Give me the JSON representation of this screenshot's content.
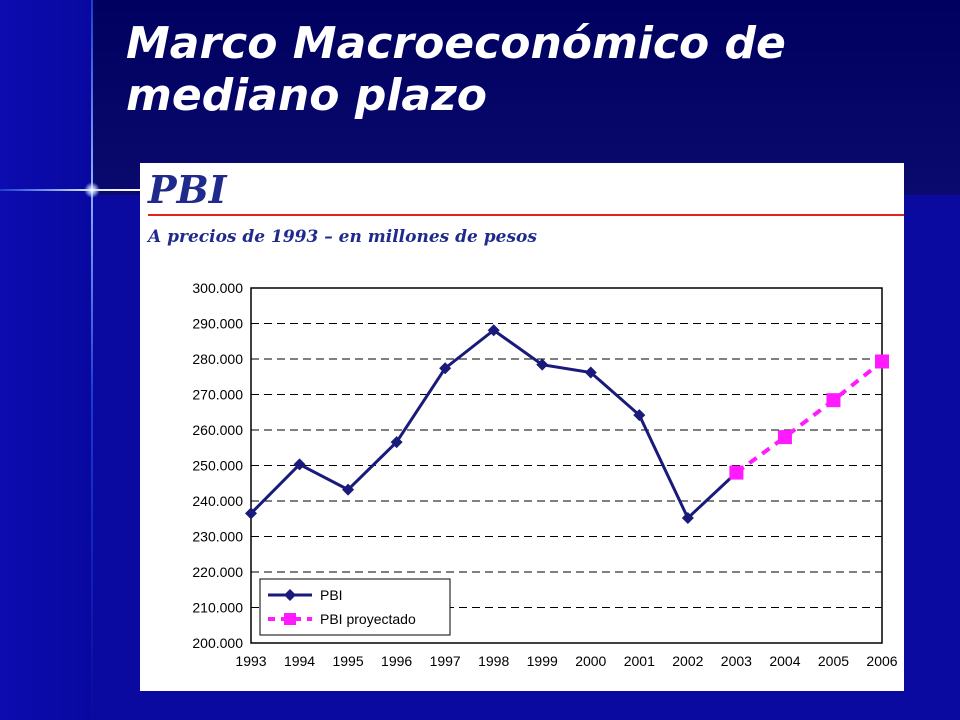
{
  "slide": {
    "title_line1": "Marco Macroeconómico de",
    "title_line2": "mediano plazo"
  },
  "chart_data": {
    "type": "line",
    "title": "PBI",
    "subtitle": "A precios de 1993 – en millones de pesos",
    "categories": [
      "1993",
      "1994",
      "1995",
      "1996",
      "1997",
      "1998",
      "1999",
      "2000",
      "2001",
      "2002",
      "2003",
      "2004",
      "2005",
      "2006"
    ],
    "ylim": [
      200000,
      300000
    ],
    "yticks": [
      "200.000",
      "210.000",
      "220.000",
      "230.000",
      "240.000",
      "250.000",
      "260.000",
      "270.000",
      "280.000",
      "290.000",
      "300.000"
    ],
    "ytick_values": [
      200000,
      210000,
      220000,
      230000,
      240000,
      250000,
      260000,
      270000,
      280000,
      290000,
      300000
    ],
    "grid": "horizontal dashed",
    "legend_position": "bottom-left",
    "series": [
      {
        "name": "PBI",
        "color": "#1a1a7a",
        "line": "solid",
        "marker": "diamond",
        "x": [
          "1993",
          "1994",
          "1995",
          "1996",
          "1997",
          "1998",
          "1999",
          "2000",
          "2001",
          "2002",
          "2003"
        ],
        "values": [
          236500,
          250300,
          243200,
          256600,
          277400,
          288100,
          278400,
          276200,
          264200,
          235200,
          248000
        ]
      },
      {
        "name": "PBI proyectado",
        "color": "#ff1aff",
        "line": "dashed",
        "marker": "square",
        "x": [
          "2003",
          "2004",
          "2005",
          "2006"
        ],
        "values": [
          248000,
          258000,
          268400,
          279300
        ]
      }
    ]
  }
}
